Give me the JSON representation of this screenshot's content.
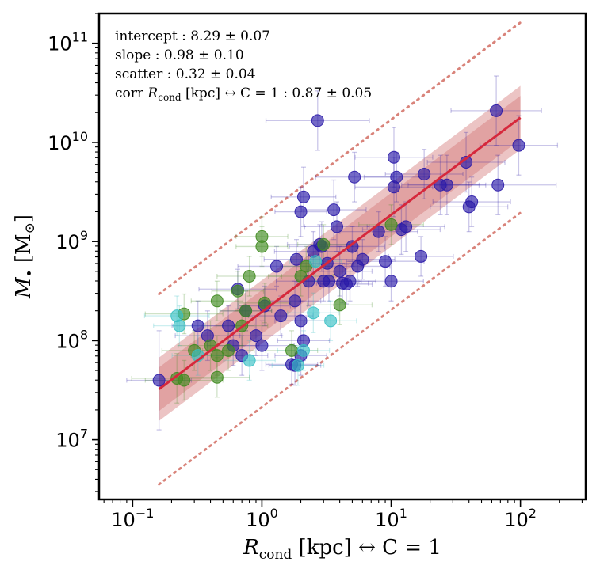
{
  "chart_data": {
    "type": "scatter",
    "x_scale": "log",
    "y_scale": "log",
    "xlim": [
      0.055,
      320
    ],
    "ylim": [
      2500000,
      200000000000
    ],
    "xlabel_parts": {
      "sym": "R",
      "sub": "cond",
      "rest": " [kpc] ↔ C = 1"
    },
    "ylabel_parts": {
      "sym": "M",
      "sub": "•",
      "rest": " [M",
      "sun": "⊙",
      "close": "]"
    },
    "x_ticks": [
      {
        "value": 0.1,
        "base": "10",
        "exp": "−1"
      },
      {
        "value": 1,
        "base": "10",
        "exp": "0"
      },
      {
        "value": 10,
        "base": "10",
        "exp": "1"
      },
      {
        "value": 100,
        "base": "10",
        "exp": "2"
      }
    ],
    "y_ticks": [
      {
        "value": 10000000,
        "base": "10",
        "exp": "7"
      },
      {
        "value": 100000000,
        "base": "10",
        "exp": "8"
      },
      {
        "value": 1000000000,
        "base": "10",
        "exp": "9"
      },
      {
        "value": 10000000000,
        "base": "10",
        "exp": "10"
      },
      {
        "value": 100000000000,
        "base": "10",
        "exp": "11"
      }
    ],
    "annotations": [
      "intercept :  8.29 ± 0.07",
      "slope :  0.98 ± 0.10",
      "scatter :  0.32 ± 0.04"
    ],
    "corr_annotation": {
      "pre": "corr ",
      "sym": "R",
      "sub": "cond",
      "post": " [kpc] ↔ C = 1 :  0.87 ± 0.05"
    },
    "fit": {
      "intercept": 8.29,
      "slope": 0.98,
      "scatter": 0.32,
      "x_range": [
        0.16,
        100
      ],
      "band_inner_halfwidth": 0.22,
      "band_outer_halfwidth": 0.32,
      "dotted_offset": 0.96
    },
    "colors": {
      "blue": "#2a1aa8",
      "green": "#3f8a1f",
      "cyan": "#38c0c4",
      "fit_line": "#d6283c",
      "band": "#c03a3a",
      "dotted": "#d9837a"
    },
    "series": [
      {
        "color_key": "blue",
        "points": [
          [
            0.16,
            7.6,
            0.25,
            0.5
          ],
          [
            0.32,
            8.15,
            0.2,
            0.25
          ],
          [
            0.38,
            8.05,
            0.25,
            0.25
          ],
          [
            0.55,
            8.15,
            0.2,
            0.2
          ],
          [
            0.6,
            7.95,
            0.2,
            0.2
          ],
          [
            0.65,
            8.52,
            0.3,
            0.2
          ],
          [
            0.7,
            7.85,
            0.2,
            0.2
          ],
          [
            0.75,
            8.3,
            0.2,
            0.2
          ],
          [
            1.0,
            7.95,
            0.25,
            0.25
          ],
          [
            1.05,
            8.35,
            0.2,
            0.2
          ],
          [
            1.3,
            8.75,
            0.3,
            0.2
          ],
          [
            1.4,
            8.25,
            0.25,
            0.2
          ],
          [
            1.8,
            8.4,
            0.2,
            0.2
          ],
          [
            1.8,
            7.75,
            0.2,
            0.2
          ],
          [
            1.85,
            8.82,
            0.25,
            0.2
          ],
          [
            2.0,
            9.3,
            0.2,
            0.25
          ],
          [
            2.1,
            9.45,
            0.25,
            0.3
          ],
          [
            2.0,
            8.2,
            0.2,
            0.2
          ],
          [
            2.1,
            8.0,
            0.2,
            0.2
          ],
          [
            2.0,
            7.85,
            0.2,
            0.2
          ],
          [
            2.3,
            8.6,
            0.25,
            0.25
          ],
          [
            2.5,
            8.9,
            0.3,
            0.2
          ],
          [
            2.7,
            10.22,
            0.4,
            0.3
          ],
          [
            2.9,
            8.95,
            0.25,
            0.25
          ],
          [
            3.0,
            8.6,
            0.2,
            0.2
          ],
          [
            3.2,
            8.78,
            0.2,
            0.2
          ],
          [
            3.3,
            8.6,
            0.25,
            0.2
          ],
          [
            3.6,
            9.32,
            0.25,
            0.3
          ],
          [
            3.8,
            9.15,
            0.25,
            0.25
          ],
          [
            4.0,
            8.7,
            0.25,
            0.25
          ],
          [
            4.2,
            8.58,
            0.2,
            0.2
          ],
          [
            4.5,
            8.57,
            0.2,
            0.2
          ],
          [
            5.0,
            8.95,
            0.25,
            0.2
          ],
          [
            5.2,
            9.65,
            0.3,
            0.25
          ],
          [
            5.5,
            8.75,
            0.25,
            0.2
          ],
          [
            6.0,
            8.82,
            0.25,
            0.2
          ],
          [
            8.0,
            9.1,
            0.3,
            0.2
          ],
          [
            9.0,
            8.8,
            0.3,
            0.25
          ],
          [
            10.0,
            8.6,
            0.25,
            0.2
          ],
          [
            10.5,
            9.55,
            0.3,
            0.3
          ],
          [
            10.5,
            9.85,
            0.3,
            0.3
          ],
          [
            11.0,
            9.65,
            0.25,
            0.25
          ],
          [
            12.0,
            9.12,
            0.3,
            0.25
          ],
          [
            13.0,
            9.15,
            0.3,
            0.25
          ],
          [
            18.0,
            9.68,
            0.3,
            0.25
          ],
          [
            17.0,
            8.85,
            0.25,
            0.2
          ],
          [
            24.0,
            9.57,
            0.3,
            0.3
          ],
          [
            27.0,
            9.57,
            0.3,
            0.3
          ],
          [
            38.0,
            9.8,
            0.3,
            0.3
          ],
          [
            40.0,
            9.35,
            0.3,
            0.25
          ],
          [
            42.0,
            9.4,
            0.3,
            0.25
          ],
          [
            65.0,
            10.32,
            0.35,
            0.35
          ],
          [
            67.0,
            9.57,
            0.45,
            0.3
          ],
          [
            97.0,
            9.97,
            0.3,
            0.3
          ],
          [
            1.7,
            7.76,
            0.2,
            0.2
          ],
          [
            2.8,
            8.97,
            0.25,
            0.2
          ],
          [
            0.9,
            8.05,
            0.2,
            0.2
          ],
          [
            4.8,
            8.6,
            0.2,
            0.2
          ]
        ]
      },
      {
        "color_key": "green",
        "points": [
          [
            0.22,
            7.62,
            0.35,
            0.25
          ],
          [
            0.25,
            7.6,
            0.3,
            0.2
          ],
          [
            0.25,
            8.27,
            0.3,
            0.2
          ],
          [
            0.3,
            7.9,
            0.25,
            0.2
          ],
          [
            0.4,
            7.95,
            0.25,
            0.25
          ],
          [
            0.45,
            7.85,
            0.2,
            0.2
          ],
          [
            0.45,
            7.63,
            0.25,
            0.2
          ],
          [
            0.45,
            8.4,
            0.2,
            0.2
          ],
          [
            0.55,
            7.9,
            0.2,
            0.2
          ],
          [
            0.7,
            8.15,
            0.2,
            0.2
          ],
          [
            0.75,
            8.3,
            0.2,
            0.2
          ],
          [
            0.8,
            8.65,
            0.25,
            0.2
          ],
          [
            1.0,
            9.05,
            0.2,
            0.2
          ],
          [
            1.0,
            8.95,
            0.2,
            0.2
          ],
          [
            1.05,
            8.38,
            0.2,
            0.2
          ],
          [
            1.7,
            7.9,
            0.2,
            0.2
          ],
          [
            2.0,
            8.65,
            0.25,
            0.2
          ],
          [
            2.2,
            8.75,
            0.2,
            0.2
          ],
          [
            3.0,
            8.97,
            0.2,
            0.2
          ],
          [
            4.0,
            8.36,
            0.25,
            0.2
          ],
          [
            10.0,
            9.17,
            0.25,
            0.2
          ],
          [
            0.65,
            8.5,
            0.2,
            0.2
          ]
        ]
      },
      {
        "color_key": "cyan",
        "points": [
          [
            0.23,
            8.15,
            0.2,
            0.2
          ],
          [
            0.22,
            8.25,
            0.25,
            0.2
          ],
          [
            0.32,
            7.85,
            0.2,
            0.2
          ],
          [
            0.8,
            7.8,
            0.2,
            0.2
          ],
          [
            1.9,
            7.75,
            0.2,
            0.2
          ],
          [
            2.1,
            7.9,
            0.2,
            0.2
          ],
          [
            2.5,
            8.28,
            0.2,
            0.2
          ],
          [
            2.6,
            8.8,
            0.2,
            0.2
          ],
          [
            3.4,
            8.2,
            0.2,
            0.2
          ]
        ]
      }
    ]
  }
}
